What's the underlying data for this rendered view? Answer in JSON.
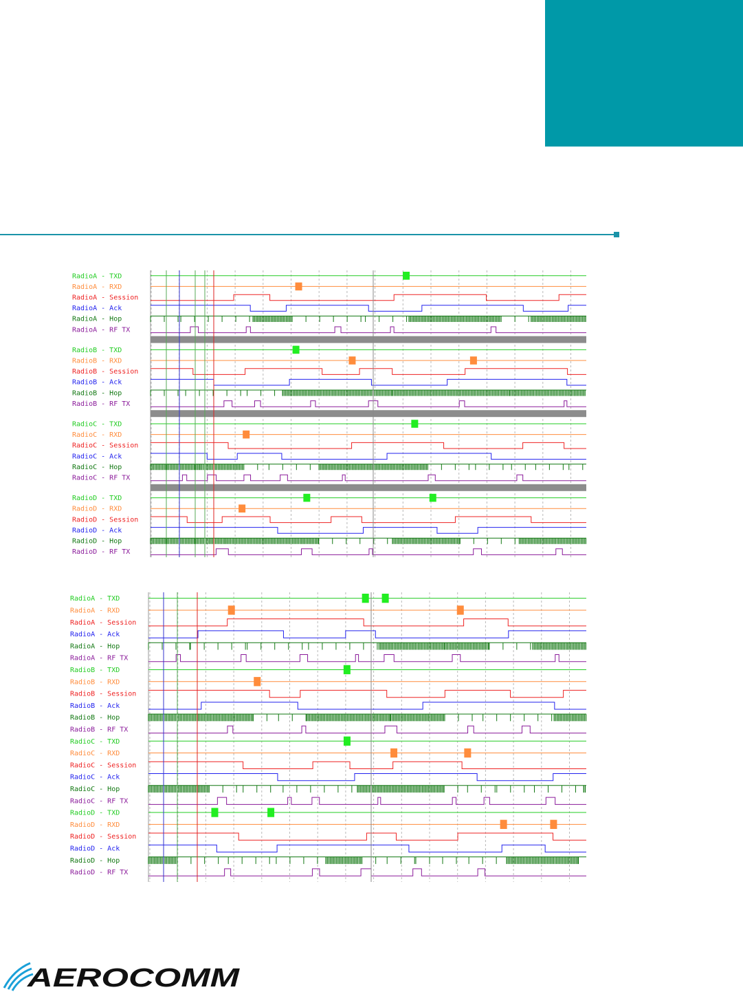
{
  "brand": {
    "accent_color": "#0099a8",
    "logo_text": "AEROCOMM",
    "logo_icon": "wave-arcs-icon"
  },
  "timing_diagrams": [
    {
      "rows": [
        {
          "label": "RadioA - TXD",
          "color": "#22cc22"
        },
        {
          "label": "RadioA - RXD",
          "color": "#ff8c3c"
        },
        {
          "label": "RadioA - Session",
          "color": "#ee2222"
        },
        {
          "label": "RadioA - Ack",
          "color": "#2222ee"
        },
        {
          "label": "RadioA - Hop",
          "color": "#117711"
        },
        {
          "label": "RadioA - RF TX",
          "color": "#8a1a9a"
        },
        {
          "label": "RadioB - TXD",
          "color": "#22cc22"
        },
        {
          "label": "RadioB - RXD",
          "color": "#ff8c3c"
        },
        {
          "label": "RadioB - Session",
          "color": "#ee2222"
        },
        {
          "label": "RadioB - Ack",
          "color": "#2222ee"
        },
        {
          "label": "RadioB - Hop",
          "color": "#117711"
        },
        {
          "label": "RadioB - RF TX",
          "color": "#8a1a9a"
        },
        {
          "label": "RadioC - TXD",
          "color": "#22cc22"
        },
        {
          "label": "RadioC - RXD",
          "color": "#ff8c3c"
        },
        {
          "label": "RadioC - Session",
          "color": "#ee2222"
        },
        {
          "label": "RadioC - Ack",
          "color": "#2222ee"
        },
        {
          "label": "RadioC - Hop",
          "color": "#117711"
        },
        {
          "label": "RadioC - RF TX",
          "color": "#8a1a9a"
        },
        {
          "label": "RadioD - TXD",
          "color": "#22cc22"
        },
        {
          "label": "RadioD - RXD",
          "color": "#ff8c3c"
        },
        {
          "label": "RadioD - Session",
          "color": "#ee2222"
        },
        {
          "label": "RadioD - Ack",
          "color": "#2222ee"
        },
        {
          "label": "RadioD - Hop",
          "color": "#117711"
        },
        {
          "label": "RadioD - RF TX",
          "color": "#8a1a9a"
        }
      ]
    },
    {
      "rows": [
        {
          "label": "RadioA - TXD",
          "color": "#22cc22"
        },
        {
          "label": "RadioA - RXD",
          "color": "#ff8c3c"
        },
        {
          "label": "RadioA - Session",
          "color": "#ee2222"
        },
        {
          "label": "RadioA - Ack",
          "color": "#2222ee"
        },
        {
          "label": "RadioA - Hop",
          "color": "#117711"
        },
        {
          "label": "RadioA - RF TX",
          "color": "#8a1a9a"
        },
        {
          "label": "RadioB - TXD",
          "color": "#22cc22"
        },
        {
          "label": "RadioB - RXD",
          "color": "#ff8c3c"
        },
        {
          "label": "RadioB - Session",
          "color": "#ee2222"
        },
        {
          "label": "RadioB - Ack",
          "color": "#2222ee"
        },
        {
          "label": "RadioB - Hop",
          "color": "#117711"
        },
        {
          "label": "RadioB - RF TX",
          "color": "#8a1a9a"
        },
        {
          "label": "RadioC - TXD",
          "color": "#22cc22"
        },
        {
          "label": "RadioC - RXD",
          "color": "#ff8c3c"
        },
        {
          "label": "RadioC - Session",
          "color": "#ee2222"
        },
        {
          "label": "RadioC - Ack",
          "color": "#2222ee"
        },
        {
          "label": "RadioC - Hop",
          "color": "#117711"
        },
        {
          "label": "RadioC - RF TX",
          "color": "#8a1a9a"
        },
        {
          "label": "RadioD - TXD",
          "color": "#22cc22"
        },
        {
          "label": "RadioD - RXD",
          "color": "#ff8c3c"
        },
        {
          "label": "RadioD - Session",
          "color": "#ee2222"
        },
        {
          "label": "RadioD - Ack",
          "color": "#2222ee"
        },
        {
          "label": "RadioD - Hop",
          "color": "#117711"
        },
        {
          "label": "RadioD - RF TX",
          "color": "#8a1a9a"
        }
      ]
    }
  ]
}
